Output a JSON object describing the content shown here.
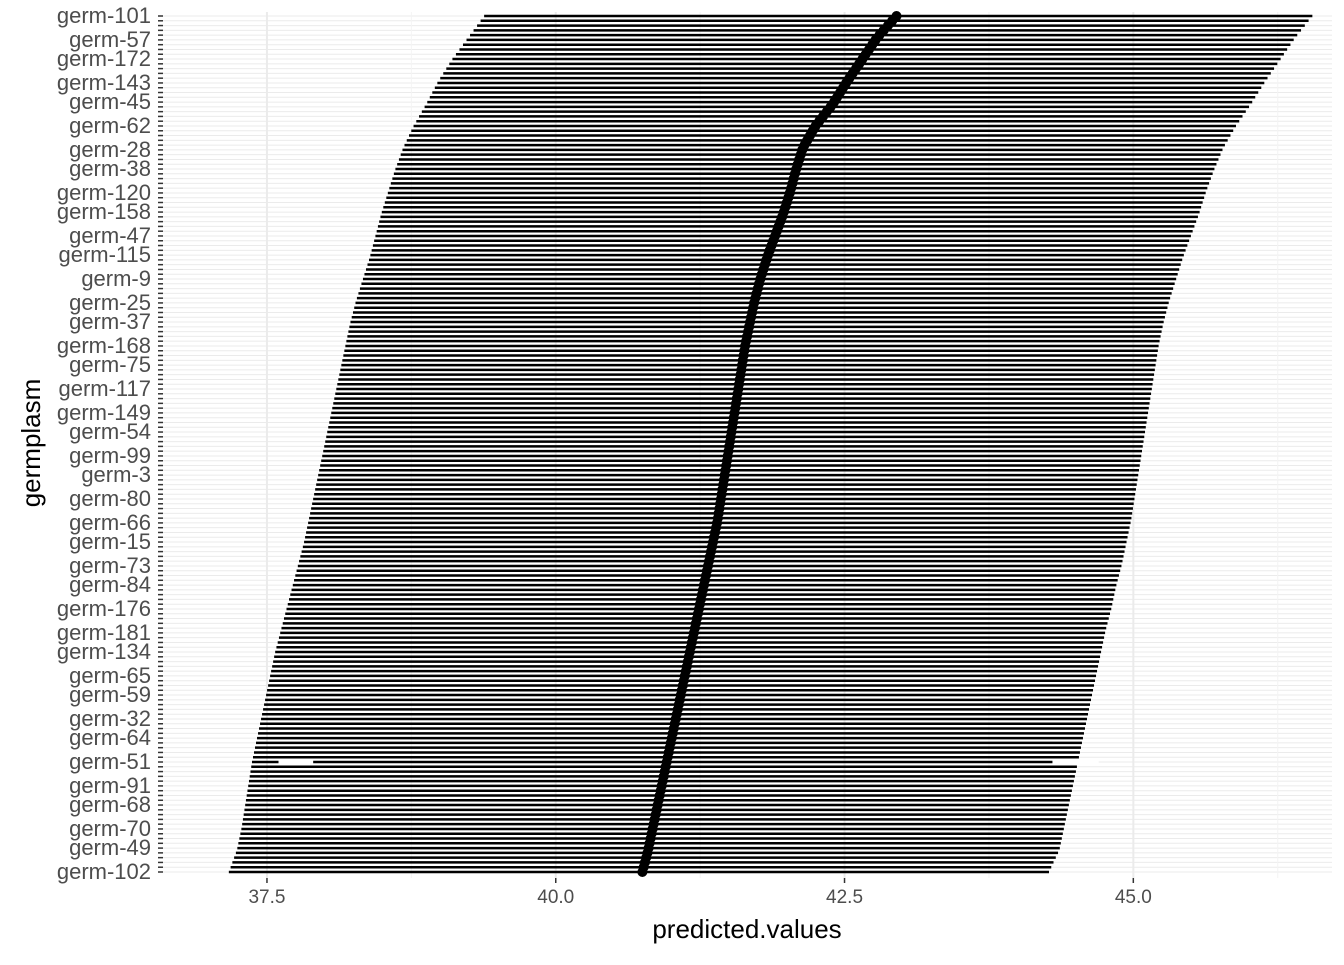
{
  "chart_data": {
    "type": "interval",
    "xlabel": "predicted.values",
    "ylabel": "germplasm",
    "xlim": [
      36.6,
      46.72
    ],
    "x_ticks": [
      37.5,
      40.0,
      42.5,
      45.0
    ],
    "x_tick_labels": [
      "37.5",
      "40.0",
      "42.5",
      "45.0"
    ],
    "grid": true,
    "legend": "none",
    "n_germplasm": 180,
    "series": [
      {
        "name": "interval",
        "kind": "errorbar"
      },
      {
        "name": "predicted",
        "kind": "point"
      }
    ],
    "visible_labels": [
      "germ-102",
      "germ-49",
      "germ-70",
      "germ-68",
      "germ-91",
      "germ-51",
      "germ-64",
      "germ-32",
      "germ-59",
      "germ-65",
      "germ-134",
      "germ-181",
      "germ-176",
      "germ-84",
      "germ-73",
      "germ-15",
      "germ-66",
      "germ-80",
      "germ-3",
      "germ-99",
      "germ-54",
      "germ-149",
      "germ-117",
      "germ-75",
      "germ-168",
      "germ-37",
      "germ-25",
      "germ-9",
      "germ-115",
      "germ-47",
      "germ-158",
      "germ-120",
      "germ-38",
      "germ-28",
      "germ-62",
      "germ-45",
      "germ-143",
      "germ-172",
      "germ-57",
      "germ-101"
    ],
    "rows": [
      {
        "germplasm": "germ-102",
        "predicted": 40.75,
        "lower": 37.17,
        "upper": 44.27
      },
      {
        "germplasm": "germ-49",
        "predicted": 40.8,
        "lower": 37.24,
        "upper": 44.36
      },
      {
        "germplasm": "germ-70",
        "predicted": 40.84,
        "lower": 37.28,
        "upper": 44.4
      },
      {
        "germplasm": "germ-68",
        "predicted": 40.88,
        "lower": 37.31,
        "upper": 44.44
      },
      {
        "germplasm": "germ-91",
        "predicted": 40.92,
        "lower": 37.34,
        "upper": 44.48
      },
      {
        "germplasm": "germ-51",
        "predicted": 40.96,
        "lower": 37.37,
        "upper": 44.52
      },
      {
        "germplasm": "germ-64",
        "predicted": 41.0,
        "lower": 37.41,
        "upper": 44.56
      },
      {
        "germplasm": "germ-32",
        "predicted": 41.04,
        "lower": 37.45,
        "upper": 44.6
      },
      {
        "germplasm": "germ-59",
        "predicted": 41.08,
        "lower": 37.49,
        "upper": 44.64
      },
      {
        "germplasm": "germ-65",
        "predicted": 41.12,
        "lower": 37.53,
        "upper": 44.68
      },
      {
        "germplasm": "germ-134",
        "predicted": 41.16,
        "lower": 37.57,
        "upper": 44.72
      },
      {
        "germplasm": "germ-181",
        "predicted": 41.2,
        "lower": 37.62,
        "upper": 44.76
      },
      {
        "germplasm": "germ-176",
        "predicted": 41.24,
        "lower": 37.67,
        "upper": 44.81
      },
      {
        "germplasm": "germ-84",
        "predicted": 41.28,
        "lower": 37.72,
        "upper": 44.85
      },
      {
        "germplasm": "germ-73",
        "predicted": 41.32,
        "lower": 37.77,
        "upper": 44.9
      },
      {
        "germplasm": "germ-15",
        "predicted": 41.36,
        "lower": 37.82,
        "upper": 44.94
      },
      {
        "germplasm": "germ-66",
        "predicted": 41.4,
        "lower": 37.86,
        "upper": 44.98
      },
      {
        "germplasm": "germ-80",
        "predicted": 41.43,
        "lower": 37.9,
        "upper": 45.01
      },
      {
        "germplasm": "germ-3",
        "predicted": 41.46,
        "lower": 37.94,
        "upper": 45.04
      },
      {
        "germplasm": "germ-99",
        "predicted": 41.49,
        "lower": 37.98,
        "upper": 45.07
      },
      {
        "germplasm": "germ-54",
        "predicted": 41.52,
        "lower": 38.02,
        "upper": 45.1
      },
      {
        "germplasm": "germ-149",
        "predicted": 41.55,
        "lower": 38.06,
        "upper": 45.13
      },
      {
        "germplasm": "germ-117",
        "predicted": 41.58,
        "lower": 38.1,
        "upper": 45.16
      },
      {
        "germplasm": "germ-75",
        "predicted": 41.61,
        "lower": 38.14,
        "upper": 45.19
      },
      {
        "germplasm": "germ-168",
        "predicted": 41.64,
        "lower": 38.18,
        "upper": 45.22
      },
      {
        "germplasm": "germ-37",
        "predicted": 41.68,
        "lower": 38.22,
        "upper": 45.26
      },
      {
        "germplasm": "germ-25",
        "predicted": 41.72,
        "lower": 38.27,
        "upper": 45.31
      },
      {
        "germplasm": "germ-9",
        "predicted": 41.77,
        "lower": 38.33,
        "upper": 45.37
      },
      {
        "germplasm": "germ-115",
        "predicted": 41.83,
        "lower": 38.39,
        "upper": 45.43
      },
      {
        "germplasm": "germ-47",
        "predicted": 41.9,
        "lower": 38.44,
        "upper": 45.5
      },
      {
        "germplasm": "germ-158",
        "predicted": 41.97,
        "lower": 38.49,
        "upper": 45.57
      },
      {
        "germplasm": "germ-120",
        "predicted": 42.03,
        "lower": 38.55,
        "upper": 45.63
      },
      {
        "germplasm": "germ-38",
        "predicted": 42.08,
        "lower": 38.61,
        "upper": 45.7
      },
      {
        "germplasm": "germ-28",
        "predicted": 42.14,
        "lower": 38.68,
        "upper": 45.78
      },
      {
        "germplasm": "germ-62",
        "predicted": 42.25,
        "lower": 38.77,
        "upper": 45.89
      },
      {
        "germplasm": "germ-45",
        "predicted": 42.4,
        "lower": 38.88,
        "upper": 46.02
      },
      {
        "germplasm": "germ-143",
        "predicted": 42.52,
        "lower": 38.98,
        "upper": 46.14
      },
      {
        "germplasm": "germ-172",
        "predicted": 42.65,
        "lower": 39.1,
        "upper": 46.27
      },
      {
        "germplasm": "germ-57",
        "predicted": 42.78,
        "lower": 39.24,
        "upper": 46.4
      },
      {
        "germplasm": "germ-101",
        "predicted": 42.95,
        "lower": 39.38,
        "upper": 46.55
      }
    ],
    "highlight": {
      "germplasm": "germ-47",
      "lower_segment": [
        37.6,
        37.9
      ],
      "upper_segment": [
        44.3,
        44.7
      ]
    }
  }
}
